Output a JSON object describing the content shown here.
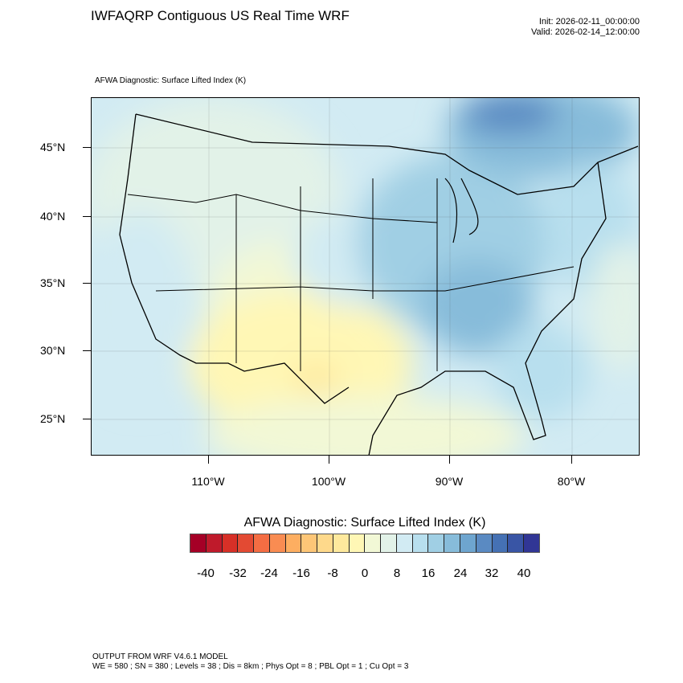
{
  "header": {
    "title": "IWFAQRP Contiguous US Real Time WRF",
    "init": "Init: 2026-02-11_00:00:00",
    "valid": "Valid: 2026-02-14_12:00:00",
    "subtitle": "AFWA Diagnostic: Surface Lifted Index   (K)"
  },
  "map": {
    "lat_labels": [
      "45°N",
      "40°N",
      "35°N",
      "30°N",
      "25°N"
    ],
    "lon_labels": [
      "110°W",
      "100°W",
      "90°W",
      "80°W"
    ]
  },
  "colorbar": {
    "title": "AFWA Diagnostic: Surface Lifted Index  (K)",
    "labels": [
      "-40",
      "-32",
      "-24",
      "-16",
      "-8",
      "0",
      "8",
      "16",
      "24",
      "32",
      "40"
    ],
    "colors": [
      "#a50026",
      "#bf1a2b",
      "#d73027",
      "#e34a33",
      "#f46d43",
      "#f98c52",
      "#fdae61",
      "#fdc677",
      "#fed98b",
      "#fee99d",
      "#fff7b5",
      "#f2f8d6",
      "#e2f2e8",
      "#d2ebf3",
      "#b8dfee",
      "#a0cfe4",
      "#87bcda",
      "#6ea5cf",
      "#5a8ac2",
      "#4571b4",
      "#3955a5",
      "#313695"
    ]
  },
  "footer": {
    "line1": "OUTPUT FROM WRF V4.6.1 MODEL",
    "line2": "WE = 580 ; SN = 380 ; Levels = 38 ; Dis = 8km ; Phys Opt = 8 ; PBL Opt = 1 ; Cu Opt = 3"
  }
}
